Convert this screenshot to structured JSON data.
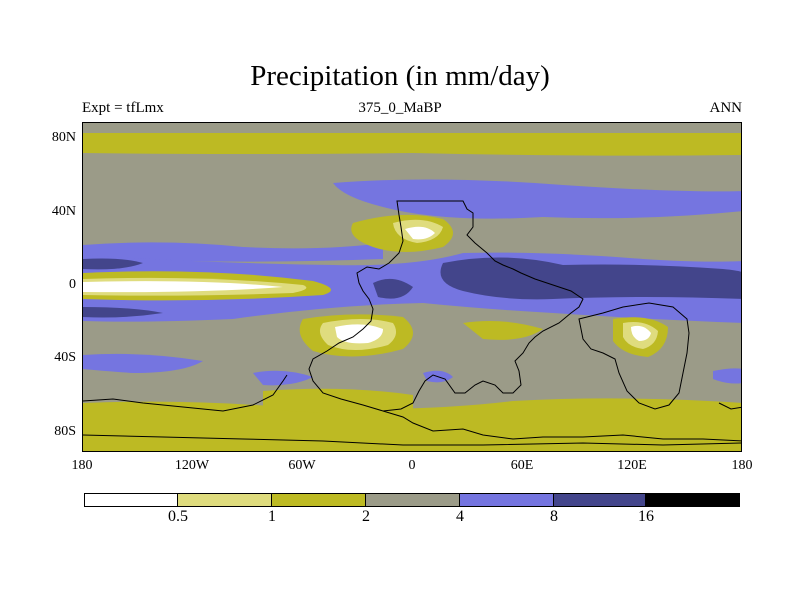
{
  "title": "Precipitation (in mm/day)",
  "subtitle_left": "Expt = tfLmx",
  "subtitle_center": "375_0_MaBP",
  "subtitle_right": "ANN",
  "y_axis_labels": [
    "80N",
    "40N",
    "0",
    "40S",
    "80S"
  ],
  "x_axis_labels": [
    "180",
    "120W",
    "60W",
    "0",
    "60E",
    "120E",
    "180"
  ],
  "colorbar": {
    "levels": [
      "0.5",
      "1",
      "2",
      "4",
      "8",
      "16"
    ],
    "colors": [
      "#ffffff",
      "#dfdc7e",
      "#bdba23",
      "#9b9b88",
      "#7575e0",
      "#43458b",
      "#000000"
    ]
  },
  "colors": {
    "very_dry": "#ffffff",
    "dry": "#dfdc7e",
    "low": "#bdba23",
    "mid": "#9b9b88",
    "wet": "#7575e0",
    "very_wet": "#43458b",
    "coast": "#000000"
  }
}
